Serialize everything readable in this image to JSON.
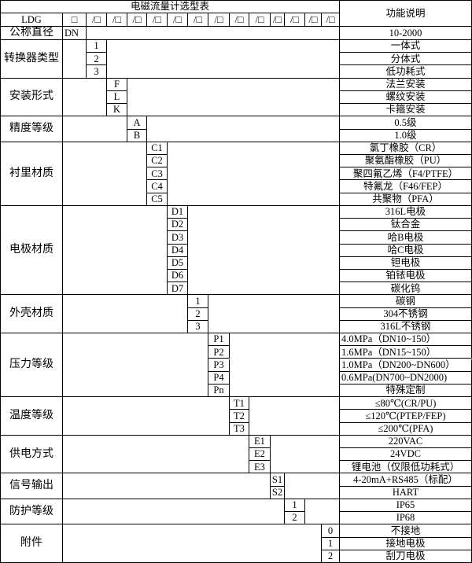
{
  "title": "电磁流量计选型表",
  "desc_header": "功能说明",
  "model_row": {
    "prefix": "LDG",
    "first_box": "□",
    "slot": "/□",
    "slot_count": 13
  },
  "nominal": {
    "label": "公称直径",
    "code": "DN",
    "desc": "10-2000"
  },
  "groups": [
    {
      "label": "转换器类型",
      "codes": [
        "1",
        "2",
        "3"
      ],
      "descs": [
        "一体式",
        "分体式",
        "低功耗式"
      ]
    },
    {
      "label": "安装形式",
      "codes": [
        "F",
        "L",
        "K"
      ],
      "descs": [
        "法兰安装",
        "螺纹安装",
        "卡箍安装"
      ]
    },
    {
      "label": "精度等级",
      "codes": [
        "A",
        "B"
      ],
      "descs": [
        "0.5级",
        "1.0级"
      ]
    },
    {
      "label": "衬里材质",
      "codes": [
        "C1",
        "C2",
        "C3",
        "C4",
        "C5"
      ],
      "descs": [
        "氯丁橡胶（CR）",
        "聚氨酯橡胶（PU）",
        "聚四氟乙烯（F4/PTFE）",
        "特氟龙（F46/FEP）",
        "共聚物（PFA）"
      ]
    },
    {
      "label": "电极材质",
      "codes": [
        "D1",
        "D2",
        "D3",
        "D4",
        "D5",
        "D6",
        "D7"
      ],
      "descs": [
        "316L电极",
        "钛合金",
        "哈B电极",
        "哈C电极",
        "钽电极",
        "铂铱电极",
        "碳化钨"
      ]
    },
    {
      "label": "外壳材质",
      "codes": [
        "1",
        "2",
        "3"
      ],
      "descs": [
        "碳钢",
        "304不锈钢",
        "316L不锈钢"
      ]
    },
    {
      "label": "压力等级",
      "codes": [
        "P1",
        "P2",
        "P3",
        "P4",
        "Pn"
      ],
      "descs": [
        "4.0MPa（DN10~150）",
        "1.6MPa（DN15~150）",
        "1.0MPa（DN200~DN600）",
        "0.6MPa(DN700~DN2000)",
        "特殊定制"
      ],
      "desc_align": [
        "left",
        "left",
        "left",
        "left",
        "center"
      ]
    },
    {
      "label": "温度等级",
      "codes": [
        "T1",
        "T2",
        "T3"
      ],
      "descs": [
        "≤80℃(CR/PU)",
        "≤120℃(PTEP/FEP)",
        "≤200℃(PFA)"
      ]
    },
    {
      "label": "供电方式",
      "codes": [
        "E1",
        "E2",
        "E3"
      ],
      "descs": [
        "220VAC",
        "24VDC",
        "锂电池（仅限低功耗式）"
      ]
    },
    {
      "label": "信号输出",
      "codes": [
        "S1",
        "S2"
      ],
      "descs": [
        "4-20mA+RS485（标配）",
        "HART"
      ]
    },
    {
      "label": "防护等级",
      "codes": [
        "1",
        "2"
      ],
      "descs": [
        "IP65",
        "IP68"
      ]
    },
    {
      "label": "附件",
      "codes": [
        "0",
        "1",
        "2"
      ],
      "descs": [
        "不接地",
        "接地电极",
        "刮刀电极"
      ]
    }
  ]
}
